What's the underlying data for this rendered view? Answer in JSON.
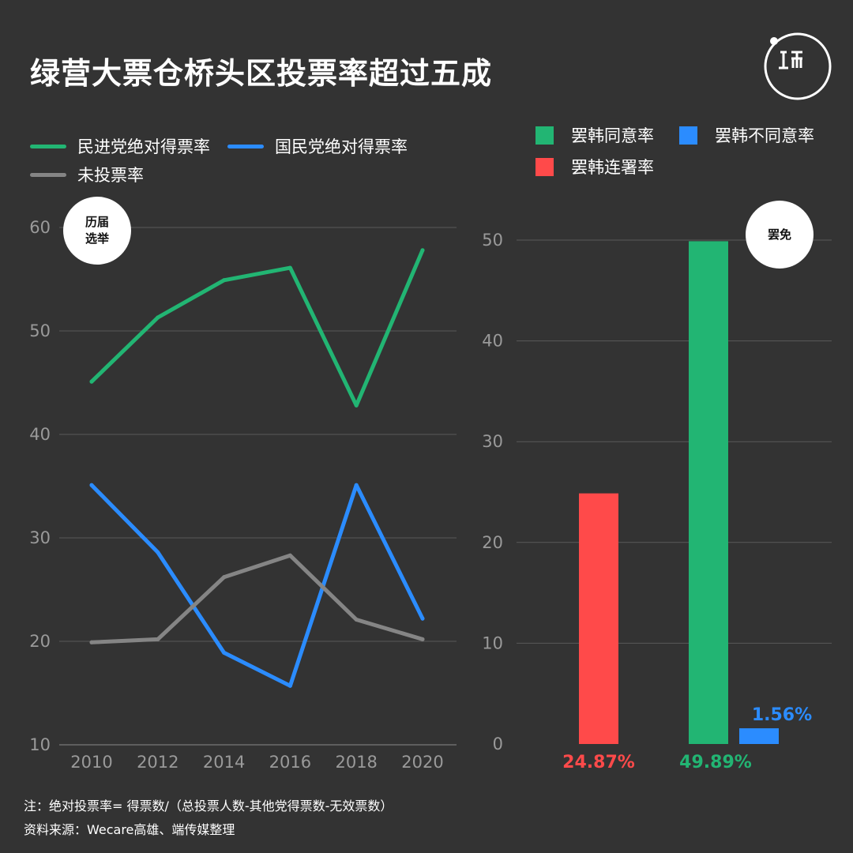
{
  "title": "绿营大票仓桥头区投票率超过五成",
  "logo_text": "山而",
  "colors": {
    "background": "#333333",
    "green": "#22b573",
    "blue": "#2b8cff",
    "gray": "#858585",
    "red": "#ff4a4a",
    "grid": "#5a5a5a",
    "axis_text": "#9a9a9a"
  },
  "badges": {
    "left_line1": "历届",
    "left_line2": "选举",
    "right": "罢免"
  },
  "legend_left": [
    {
      "label": "民进党绝对得票率",
      "color": "#22b573"
    },
    {
      "label": "国民党绝对得票率",
      "color": "#2b8cff"
    },
    {
      "label": "未投票率",
      "color": "#858585"
    }
  ],
  "legend_right": [
    {
      "label": "罢韩同意率",
      "color": "#22b573"
    },
    {
      "label": "罢韩不同意率",
      "color": "#2b8cff"
    },
    {
      "label": "罢韩连署率",
      "color": "#ff4a4a"
    }
  ],
  "chart_data": [
    {
      "type": "line",
      "x": [
        "2010",
        "2012",
        "2014",
        "2016",
        "2018",
        "2020"
      ],
      "series": [
        {
          "name": "民进党绝对得票率",
          "color": "#22b573",
          "values": [
            45.1,
            51.3,
            54.9,
            56.1,
            42.8,
            57.8
          ]
        },
        {
          "name": "国民党绝对得票率",
          "color": "#2b8cff",
          "values": [
            35.1,
            28.6,
            18.9,
            15.7,
            35.1,
            22.2
          ]
        },
        {
          "name": "未投票率",
          "color": "#858585",
          "values": [
            19.9,
            20.2,
            26.2,
            28.3,
            22.1,
            20.2
          ]
        }
      ],
      "ylim": [
        10,
        60
      ],
      "yticks": [
        "10",
        "20",
        "30",
        "40",
        "50",
        "60"
      ],
      "grid": true
    },
    {
      "type": "bar",
      "categories": [
        "罢韩连署率",
        "罢韩同意率",
        "罢韩不同意率"
      ],
      "values": [
        24.87,
        49.89,
        1.56
      ],
      "colors": [
        "#ff4a4a",
        "#22b573",
        "#2b8cff"
      ],
      "labels": [
        "24.87%",
        "49.89%",
        "1.56%"
      ],
      "ylim": [
        0,
        50
      ],
      "yticks": [
        "0",
        "10",
        "20",
        "30",
        "40",
        "50"
      ],
      "grid": true
    }
  ],
  "notes": {
    "line1": "注：绝对投票率= 得票数/（总投票人数-其他党得票数-无效票数）",
    "line2": "资料来源：Wecare高雄、端传媒整理"
  }
}
